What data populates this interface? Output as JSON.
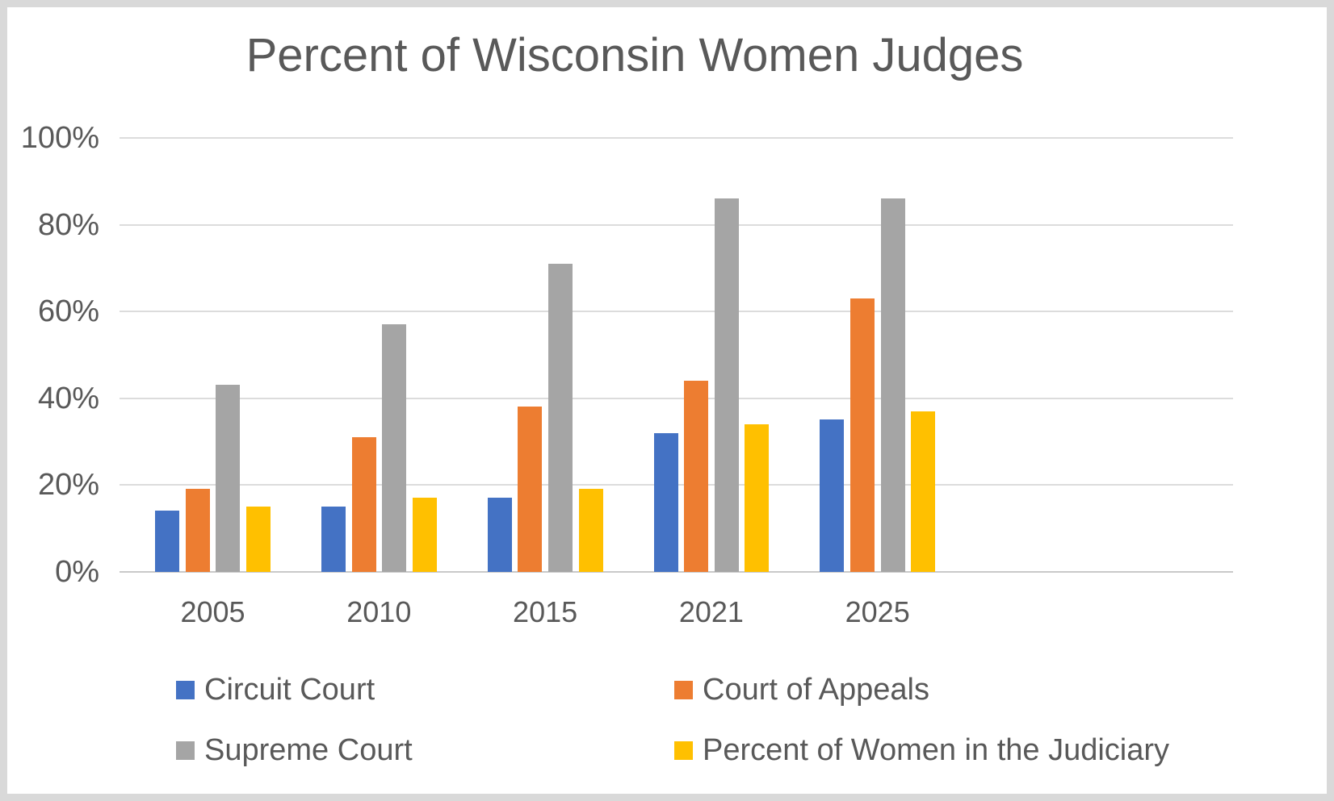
{
  "chart_data": {
    "type": "bar",
    "title": "Percent of Wisconsin Women Judges",
    "categories": [
      "2005",
      "2010",
      "2015",
      "2021",
      "2025"
    ],
    "series": [
      {
        "name": "Circuit Court",
        "color": "#4472C4",
        "values": [
          14,
          15,
          17,
          32,
          35
        ]
      },
      {
        "name": "Court of Appeals",
        "color": "#ED7D31",
        "values": [
          19,
          31,
          38,
          44,
          63
        ]
      },
      {
        "name": "Supreme Court",
        "color": "#A5A5A5",
        "values": [
          43,
          57,
          71,
          86,
          86
        ]
      },
      {
        "name": "Percent of Women in the Judiciary",
        "color": "#FFC000",
        "values": [
          15,
          17,
          19,
          34,
          37
        ]
      }
    ],
    "xlabel": "",
    "ylabel": "",
    "ylim": [
      0,
      100
    ],
    "yticks": [
      "0%",
      "20%",
      "40%",
      "60%",
      "80%",
      "100%"
    ],
    "grid": true,
    "legend_position": "bottom",
    "text_color": "#595959",
    "gridline_color": "#dcdcdc"
  }
}
